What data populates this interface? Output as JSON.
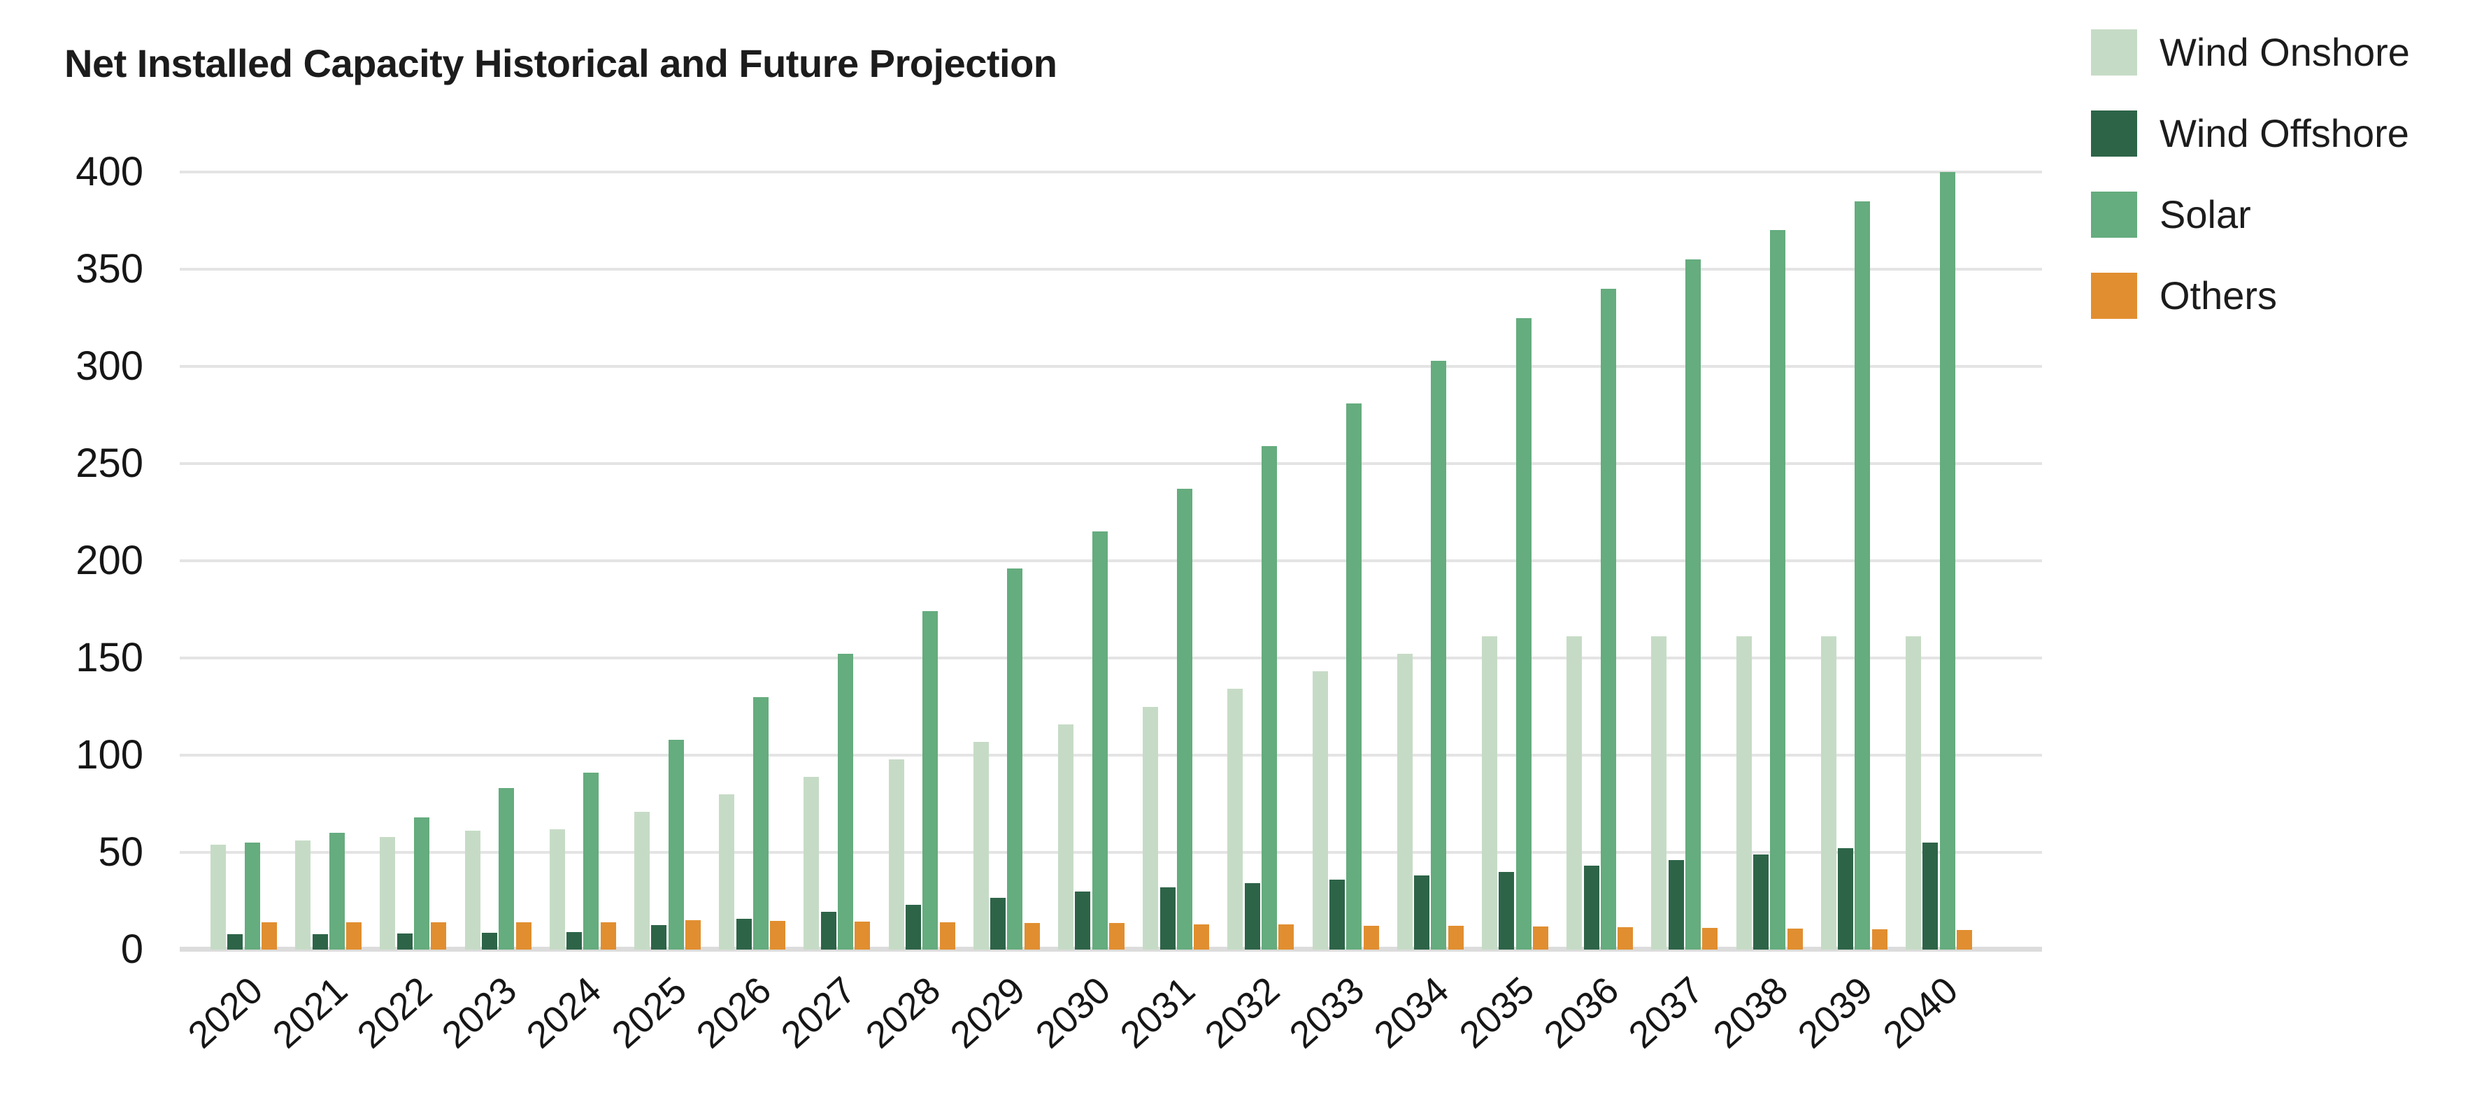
{
  "title": "Net Installed Capacity Historical and Future Projection",
  "colors": {
    "wind_onshore": "#c6dbc6",
    "wind_offshore": "#2d6448",
    "solar": "#65ac7e",
    "others": "#e18e30",
    "gridline": "#e4e4e4",
    "axis_line": "#dcdcdc",
    "text": "#1c1c1c"
  },
  "legend": {
    "position": "top-right",
    "items": [
      {
        "label": "Wind Onshore",
        "color": "#c6dbc6"
      },
      {
        "label": "Wind Offshore",
        "color": "#2d6448"
      },
      {
        "label": "Solar",
        "color": "#65ac7e"
      },
      {
        "label": "Others",
        "color": "#e18e30"
      }
    ]
  },
  "chart_data": {
    "type": "bar",
    "title": "Net Installed Capacity Historical and Future Projection",
    "xlabel": "",
    "ylabel": "",
    "ylim": [
      0,
      400
    ],
    "yticks": [
      0,
      50,
      100,
      150,
      200,
      250,
      300,
      350,
      400
    ],
    "grid": true,
    "legend_position": "top-right",
    "categories": [
      2020,
      2021,
      2022,
      2023,
      2024,
      2025,
      2026,
      2027,
      2028,
      2029,
      2030,
      2031,
      2032,
      2033,
      2034,
      2035,
      2036,
      2037,
      2038,
      2039,
      2040
    ],
    "series": [
      {
        "name": "Wind Onshore",
        "color": "#c6dbc6",
        "values": [
          54,
          56,
          58,
          61,
          62,
          71,
          80,
          89,
          98,
          107,
          116,
          125,
          134,
          143,
          152,
          161,
          161,
          161,
          161,
          161,
          161
        ]
      },
      {
        "name": "Wind Offshore",
        "color": "#2d6448",
        "values": [
          8,
          8,
          8.3,
          8.6,
          9,
          12.5,
          16,
          19.5,
          23,
          26.5,
          30,
          32,
          34,
          36,
          38,
          40,
          43,
          46,
          49,
          52,
          55
        ]
      },
      {
        "name": "Solar",
        "color": "#65ac7e",
        "values": [
          55,
          60,
          68,
          83,
          91,
          108,
          130,
          152,
          174,
          196,
          215,
          237,
          259,
          281,
          303,
          325,
          340,
          355,
          370,
          385,
          400
        ]
      },
      {
        "name": "Others",
        "color": "#e18e30",
        "values": [
          14,
          14,
          14,
          14,
          14,
          15.2,
          14.9,
          14.5,
          14.2,
          13.8,
          13.5,
          13.1,
          12.8,
          12.4,
          12.1,
          11.7,
          11.4,
          11,
          10.7,
          10.3,
          10
        ]
      }
    ]
  }
}
